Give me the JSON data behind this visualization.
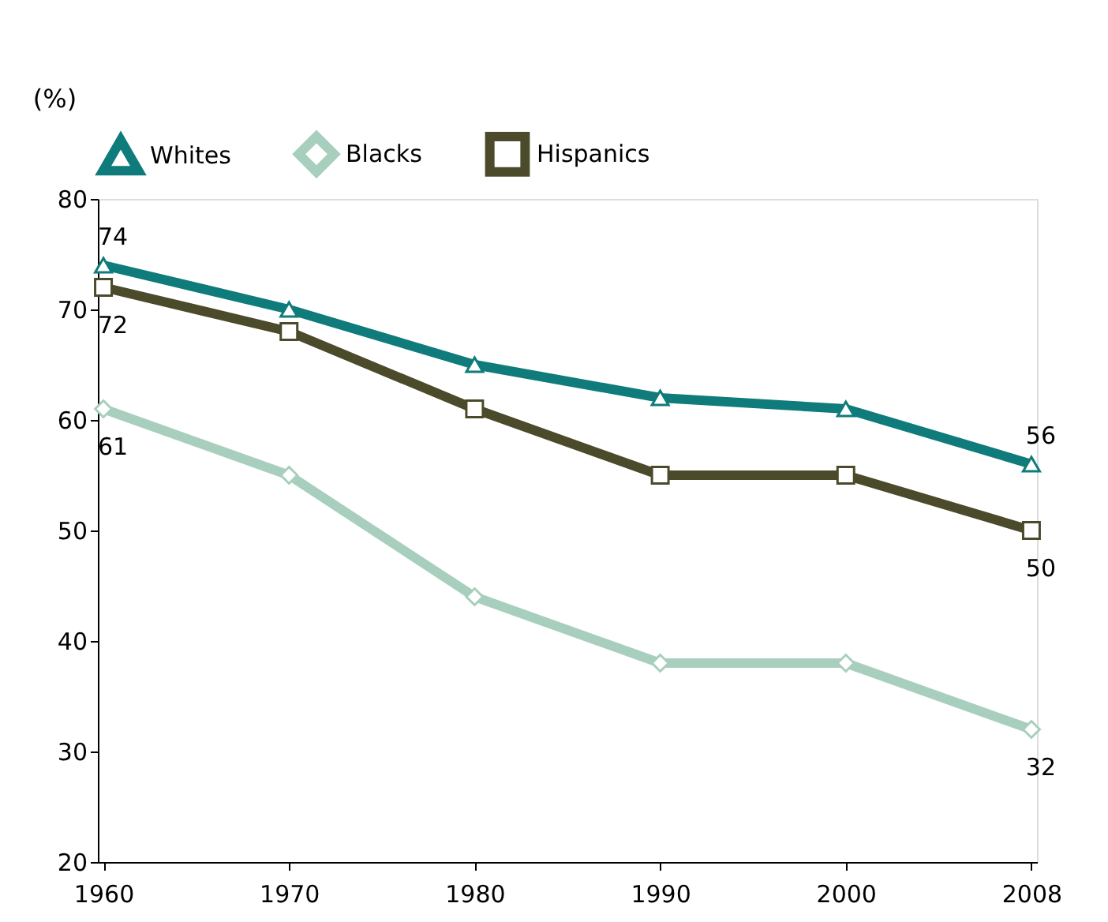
{
  "chart_data": {
    "type": "line",
    "ylabel": "(%)",
    "categories": [
      "1960",
      "1970",
      "1980",
      "1990",
      "2000",
      "2008"
    ],
    "series": [
      {
        "name": "Whites",
        "color": "#0f7b7a",
        "marker": "triangle",
        "values": [
          74,
          70,
          65,
          62,
          61,
          56
        ],
        "value_labels": [
          "74",
          null,
          null,
          null,
          null,
          "56"
        ]
      },
      {
        "name": "Blacks",
        "color": "#a8cfbd",
        "marker": "diamond",
        "values": [
          61,
          55,
          44,
          38,
          38,
          32
        ],
        "value_labels": [
          "61",
          null,
          null,
          null,
          null,
          "32"
        ]
      },
      {
        "name": "Hispanics",
        "color": "#4b4a2b",
        "marker": "square",
        "values": [
          72,
          68,
          61,
          55,
          55,
          50
        ],
        "value_labels": [
          "72",
          null,
          null,
          null,
          null,
          "50"
        ]
      }
    ],
    "ylim": [
      20,
      80
    ],
    "yticks": [
      20,
      30,
      40,
      50,
      60,
      70,
      80
    ],
    "legend": "top",
    "grid": false,
    "line_style": "solid"
  }
}
